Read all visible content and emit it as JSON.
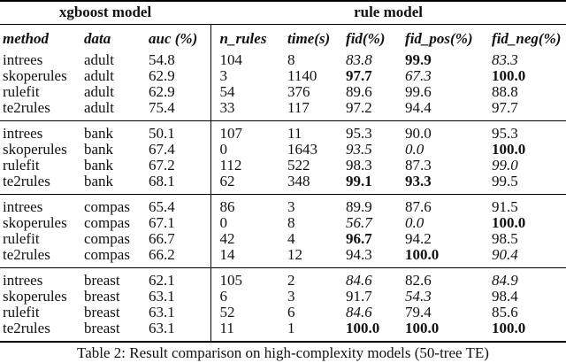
{
  "colors": {
    "background": "#ffffff",
    "text": "#111111",
    "rule_lines": "#000000"
  },
  "table": {
    "caption": "Table 2: Result comparison on high-complexity models (50-tree TE)",
    "group_headers": [
      {
        "label": "xgboost model",
        "span": 3
      },
      {
        "label": "rule model",
        "span": 5
      }
    ],
    "columns": [
      "method",
      "data",
      "auc (%)",
      "n_rules",
      "time(s)",
      "fid(%)",
      "fid_pos(%)",
      "fid_neg(%)"
    ],
    "blocks": [
      {
        "dataset": "adult",
        "rows": [
          [
            "intrees",
            "adult",
            "54.8",
            "104",
            "8",
            {
              "text": "83.8",
              "style": "italic"
            },
            {
              "text": "99.9",
              "style": "bold"
            },
            {
              "text": "83.3",
              "style": "italic"
            }
          ],
          [
            "skoperules",
            "adult",
            "62.9",
            "3",
            "1140",
            {
              "text": "97.7",
              "style": "bold"
            },
            {
              "text": "67.3",
              "style": "italic"
            },
            {
              "text": "100.0",
              "style": "bold"
            }
          ],
          [
            "rulefit",
            "adult",
            "62.9",
            "54",
            "376",
            "89.6",
            "99.6",
            "88.8"
          ],
          [
            "te2rules",
            "adult",
            "75.4",
            "33",
            "117",
            "97.2",
            "94.4",
            "97.7"
          ]
        ]
      },
      {
        "dataset": "bank",
        "rows": [
          [
            "intrees",
            "bank",
            "50.1",
            "107",
            "11",
            "95.3",
            "90.0",
            "95.3"
          ],
          [
            "skoperules",
            "bank",
            "67.4",
            "0",
            "1643",
            {
              "text": "93.5",
              "style": "italic"
            },
            {
              "text": "0.0",
              "style": "italic"
            },
            {
              "text": "100.0",
              "style": "bold"
            }
          ],
          [
            "rulefit",
            "bank",
            "67.2",
            "112",
            "522",
            "98.3",
            "87.3",
            {
              "text": "99.0",
              "style": "italic"
            }
          ],
          [
            "te2rules",
            "bank",
            "68.1",
            "62",
            "348",
            {
              "text": "99.1",
              "style": "bold"
            },
            {
              "text": "93.3",
              "style": "bold"
            },
            "99.5"
          ]
        ]
      },
      {
        "dataset": "compas",
        "rows": [
          [
            "intrees",
            "compas",
            "65.4",
            "86",
            "3",
            "89.9",
            "87.6",
            "91.5"
          ],
          [
            "skoperules",
            "compas",
            "67.1",
            "0",
            "8",
            {
              "text": "56.7",
              "style": "italic"
            },
            {
              "text": "0.0",
              "style": "italic"
            },
            {
              "text": "100.0",
              "style": "bold"
            }
          ],
          [
            "rulefit",
            "compas",
            "66.7",
            "42",
            "4",
            {
              "text": "96.7",
              "style": "bold"
            },
            "94.2",
            "98.5"
          ],
          [
            "te2rules",
            "compas",
            "66.2",
            "14",
            "12",
            "94.3",
            {
              "text": "100.0",
              "style": "bold"
            },
            {
              "text": "90.4",
              "style": "italic"
            }
          ]
        ]
      },
      {
        "dataset": "breast",
        "rows": [
          [
            "intrees",
            "breast",
            "62.1",
            "105",
            "2",
            {
              "text": "84.6",
              "style": "italic"
            },
            "82.6",
            {
              "text": "84.9",
              "style": "italic"
            }
          ],
          [
            "skoperules",
            "breast",
            "63.1",
            "6",
            "3",
            "91.7",
            {
              "text": "54.3",
              "style": "italic"
            },
            "98.4"
          ],
          [
            "rulefit",
            "breast",
            "63.1",
            "52",
            "6",
            {
              "text": "84.6",
              "style": "italic"
            },
            "79.4",
            "85.6"
          ],
          [
            "te2rules",
            "breast",
            "63.1",
            "11",
            "1",
            {
              "text": "100.0",
              "style": "bold"
            },
            {
              "text": "100.0",
              "style": "bold"
            },
            {
              "text": "100.0",
              "style": "bold"
            }
          ]
        ]
      }
    ]
  }
}
